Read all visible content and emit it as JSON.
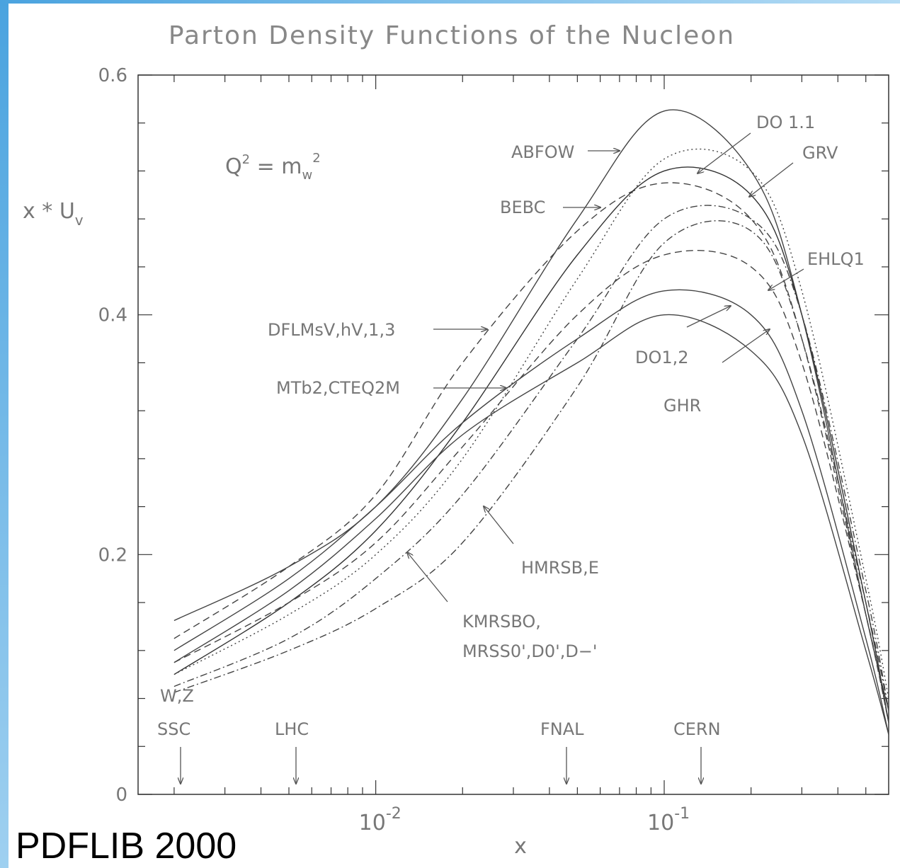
{
  "chart_data": {
    "type": "line",
    "title": "Parton Density Functions of the Nucleon",
    "x_label": "x",
    "y_label": [
      "x * U",
      "v"
    ],
    "formula": [
      "Q",
      "2",
      " = m",
      "w",
      "2"
    ],
    "footer": "PDFLIB 2000",
    "x_scale": "log",
    "xlim": [
      0.0015,
      0.6
    ],
    "xticks": [
      {
        "value": 0.01,
        "label": "10",
        "exponent": "-2"
      },
      {
        "value": 0.1,
        "label": "10",
        "exponent": "-1"
      }
    ],
    "xminorticks": [
      0.002,
      0.003,
      0.004,
      0.005,
      0.006,
      0.007,
      0.008,
      0.009,
      0.02,
      0.03,
      0.04,
      0.05,
      0.06,
      0.07,
      0.08,
      0.09,
      0.2,
      0.3,
      0.4,
      0.5
    ],
    "ylim": [
      0,
      0.6
    ],
    "yticks": [
      0,
      0.2,
      0.4,
      0.6
    ],
    "yminorticks": [
      0.04,
      0.08,
      0.12,
      0.16,
      0.24,
      0.28,
      0.32,
      0.36,
      0.44,
      0.48,
      0.52,
      0.56
    ],
    "x": [
      0.002,
      0.005,
      0.01,
      0.02,
      0.05,
      0.1,
      0.2,
      0.3,
      0.5,
      0.6
    ],
    "series": [
      {
        "color": "#444444",
        "dash": "solid",
        "values": [
          0.145,
          0.19,
          0.24,
          0.33,
          0.48,
          0.57,
          0.52,
          0.4,
          0.15,
          0.07
        ]
      },
      {
        "color": "#444444",
        "dash": "dashed",
        "values": [
          0.13,
          0.19,
          0.25,
          0.36,
          0.47,
          0.51,
          0.48,
          0.38,
          0.15,
          0.06
        ]
      },
      {
        "color": "#333333",
        "dash": "solid",
        "values": [
          0.1,
          0.16,
          0.22,
          0.31,
          0.45,
          0.52,
          0.5,
          0.4,
          0.16,
          0.06
        ]
      },
      {
        "color": "#444444",
        "dash": "dotted",
        "values": [
          0.1,
          0.15,
          0.2,
          0.28,
          0.43,
          0.53,
          0.52,
          0.42,
          0.18,
          0.08
        ]
      },
      {
        "color": "#444444",
        "dash": "dashdot",
        "values": [
          0.09,
          0.13,
          0.18,
          0.25,
          0.38,
          0.48,
          0.48,
          0.4,
          0.17,
          0.07
        ]
      },
      {
        "color": "#444444",
        "dash": "dashdot",
        "values": [
          0.085,
          0.12,
          0.155,
          0.21,
          0.34,
          0.46,
          0.47,
          0.38,
          0.16,
          0.07
        ]
      },
      {
        "color": "#444444",
        "dash": "dashed",
        "values": [
          0.11,
          0.16,
          0.21,
          0.29,
          0.4,
          0.45,
          0.44,
          0.36,
          0.15,
          0.06
        ]
      },
      {
        "color": "#444444",
        "dash": "solid",
        "values": [
          0.12,
          0.18,
          0.24,
          0.31,
          0.38,
          0.42,
          0.4,
          0.32,
          0.13,
          0.05
        ]
      },
      {
        "color": "#444444",
        "dash": "solid",
        "values": [
          0.11,
          0.17,
          0.23,
          0.3,
          0.36,
          0.4,
          0.37,
          0.3,
          0.12,
          0.05
        ]
      }
    ],
    "annotations": [
      "ABFOW",
      "DO 1.1",
      "GRV",
      "BEBC",
      "EHLQ1",
      "DFLMsV,hV,1,3",
      "MTb2,CTEQ2M",
      "DO1,2",
      "GHR",
      "HMRSB,E",
      "KMRSBO,",
      "MRSS0',D0',D−'",
      "W,Z",
      "SSC",
      "LHC",
      "FNAL",
      "CERN"
    ]
  }
}
